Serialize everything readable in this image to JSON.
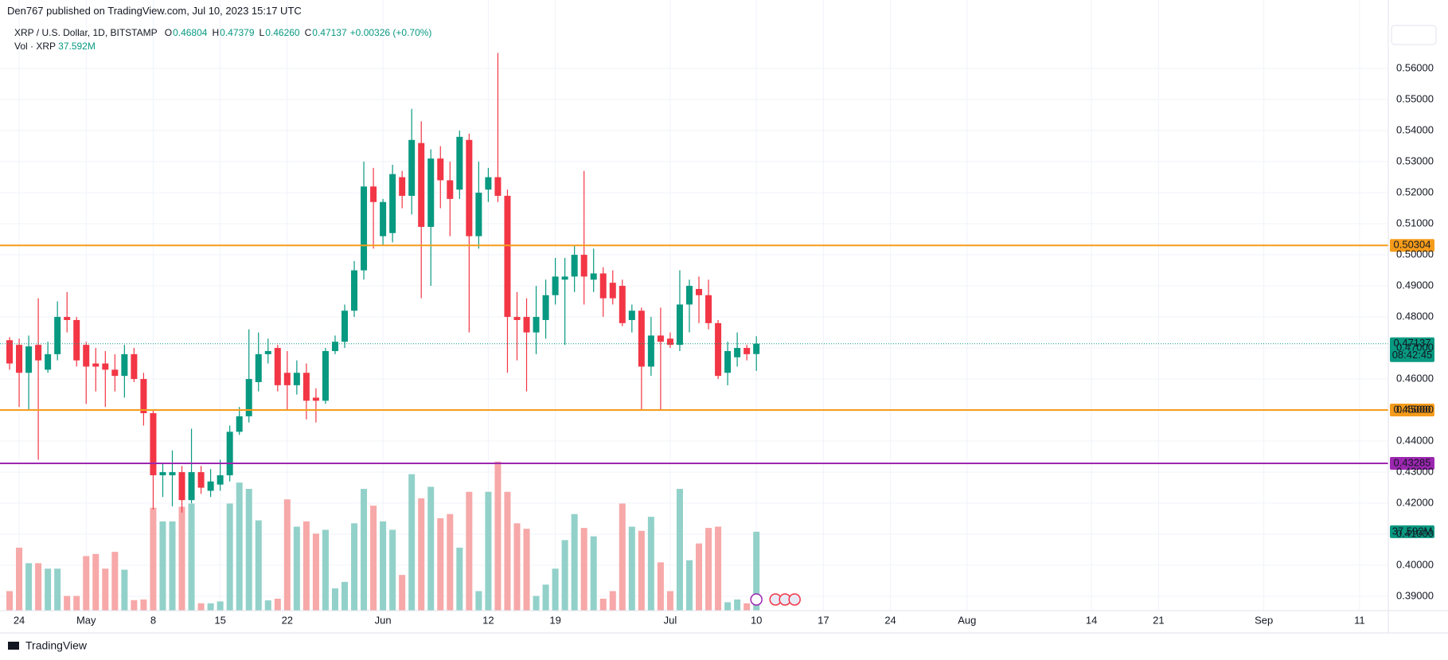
{
  "chart_data": {
    "type": "candlestick",
    "published": "Den767 published on TradingView.com, Jul 10, 2023 15:17 UTC",
    "title": "XRP / U.S. Dollar, 1D, BITSTAMP",
    "ohlc_legend": [
      {
        "label": "O",
        "value": "0.46804"
      },
      {
        "label": "H",
        "value": "0.47379"
      },
      {
        "label": "L",
        "value": "0.46260"
      },
      {
        "label": "C",
        "value": "0.47137"
      }
    ],
    "change": "+0.00326 (+0.70%)",
    "volume_legend": {
      "label": "Vol · XRP",
      "value": "37.592M"
    },
    "footer": "TradingView",
    "up_color": "#089981",
    "down_color": "#f23645",
    "volume_colors": {
      "up": "#92d1c9",
      "down": "#f7a8a8"
    },
    "x": [
      "2023-04-23",
      "2023-04-24",
      "2023-04-25",
      "2023-04-26",
      "2023-04-27",
      "2023-04-28",
      "2023-04-29",
      "2023-04-30",
      "2023-05-01",
      "2023-05-02",
      "2023-05-03",
      "2023-05-04",
      "2023-05-05",
      "2023-05-06",
      "2023-05-07",
      "2023-05-08",
      "2023-05-09",
      "2023-05-10",
      "2023-05-11",
      "2023-05-12",
      "2023-05-13",
      "2023-05-14",
      "2023-05-15",
      "2023-05-16",
      "2023-05-17",
      "2023-05-18",
      "2023-05-19",
      "2023-05-20",
      "2023-05-21",
      "2023-05-22",
      "2023-05-23",
      "2023-05-24",
      "2023-05-25",
      "2023-05-26",
      "2023-05-27",
      "2023-05-28",
      "2023-05-29",
      "2023-05-30",
      "2023-05-31",
      "2023-06-01",
      "2023-06-02",
      "2023-06-03",
      "2023-06-04",
      "2023-06-05",
      "2023-06-06",
      "2023-06-07",
      "2023-06-08",
      "2023-06-09",
      "2023-06-10",
      "2023-06-11",
      "2023-06-12",
      "2023-06-13",
      "2023-06-14",
      "2023-06-15",
      "2023-06-16",
      "2023-06-17",
      "2023-06-18",
      "2023-06-19",
      "2023-06-20",
      "2023-06-21",
      "2023-06-22",
      "2023-06-23",
      "2023-06-24",
      "2023-06-25",
      "2023-06-26",
      "2023-06-27",
      "2023-06-28",
      "2023-06-29",
      "2023-06-30",
      "2023-07-01",
      "2023-07-02",
      "2023-07-03",
      "2023-07-04",
      "2023-07-05",
      "2023-07-06",
      "2023-07-07",
      "2023-07-08",
      "2023-07-09",
      "2023-07-10"
    ],
    "open": [
      0.4725,
      0.471,
      0.462,
      0.471,
      0.463,
      0.468,
      0.48,
      0.479,
      0.471,
      0.465,
      0.465,
      0.463,
      0.461,
      0.468,
      0.46,
      0.449,
      0.429,
      0.429,
      0.43,
      0.421,
      0.43,
      0.424,
      0.426,
      0.429,
      0.443,
      0.448,
      0.459,
      0.468,
      0.47,
      0.462,
      0.458,
      0.462,
      0.454,
      0.453,
      0.469,
      0.472,
      0.482,
      0.495,
      0.522,
      0.506,
      0.507,
      0.525,
      0.519,
      0.536,
      0.509,
      0.531,
      0.524,
      0.521,
      0.537,
      0.506,
      0.521,
      0.525,
      0.519,
      0.48,
      0.48,
      0.475,
      0.479,
      0.487,
      0.492,
      0.493,
      0.5,
      0.492,
      0.494,
      0.491,
      0.49,
      0.479,
      0.482,
      0.464,
      0.474,
      0.473,
      0.471,
      0.484,
      0.489,
      0.487,
      0.478,
      0.462,
      0.467,
      0.47,
      0.46804
    ],
    "high": [
      0.4735,
      0.473,
      0.474,
      0.486,
      0.472,
      0.485,
      0.488,
      0.48,
      0.472,
      0.47,
      0.469,
      0.468,
      0.471,
      0.47,
      0.462,
      0.45,
      0.433,
      0.437,
      0.432,
      0.444,
      0.432,
      0.431,
      0.434,
      0.445,
      0.451,
      0.476,
      0.475,
      0.473,
      0.471,
      0.469,
      0.466,
      0.465,
      0.457,
      0.47,
      0.474,
      0.484,
      0.498,
      0.53,
      0.528,
      0.518,
      0.529,
      0.527,
      0.547,
      0.543,
      0.534,
      0.535,
      0.53,
      0.54,
      0.539,
      0.53,
      0.528,
      0.565,
      0.521,
      0.488,
      0.486,
      0.49,
      0.492,
      0.499,
      0.499,
      0.503,
      0.527,
      0.502,
      0.496,
      0.495,
      0.492,
      0.484,
      0.483,
      0.48,
      0.483,
      0.475,
      0.495,
      0.492,
      0.493,
      0.492,
      0.479,
      0.472,
      0.475,
      0.471,
      0.47379
    ],
    "low": [
      0.463,
      0.451,
      0.45,
      0.434,
      0.462,
      0.466,
      0.475,
      0.464,
      0.452,
      0.456,
      0.451,
      0.456,
      0.454,
      0.459,
      0.445,
      0.418,
      0.422,
      0.419,
      0.417,
      0.42,
      0.423,
      0.422,
      0.424,
      0.427,
      0.442,
      0.446,
      0.456,
      0.465,
      0.456,
      0.45,
      0.455,
      0.447,
      0.446,
      0.452,
      0.468,
      0.47,
      0.48,
      0.492,
      0.502,
      0.503,
      0.504,
      0.515,
      0.513,
      0.486,
      0.49,
      0.515,
      0.506,
      0.518,
      0.475,
      0.502,
      0.517,
      0.517,
      0.462,
      0.466,
      0.456,
      0.468,
      0.473,
      0.484,
      0.471,
      0.488,
      0.484,
      0.488,
      0.48,
      0.484,
      0.477,
      0.475,
      0.45,
      0.461,
      0.45,
      0.47,
      0.469,
      0.475,
      0.478,
      0.476,
      0.46,
      0.458,
      0.464,
      0.466,
      0.4626
    ],
    "close": [
      0.465,
      0.462,
      0.4705,
      0.466,
      0.468,
      0.48,
      0.479,
      0.466,
      0.464,
      0.464,
      0.463,
      0.461,
      0.468,
      0.46,
      0.449,
      0.429,
      0.43,
      0.43,
      0.421,
      0.43,
      0.425,
      0.427,
      0.429,
      0.443,
      0.448,
      0.46,
      0.468,
      0.469,
      0.458,
      0.458,
      0.462,
      0.453,
      0.453,
      0.469,
      0.472,
      0.482,
      0.495,
      0.522,
      0.517,
      0.517,
      0.526,
      0.519,
      0.537,
      0.509,
      0.531,
      0.524,
      0.518,
      0.538,
      0.506,
      0.52,
      0.525,
      0.519,
      0.48,
      0.479,
      0.475,
      0.48,
      0.487,
      0.493,
      0.493,
      0.5,
      0.493,
      0.494,
      0.486,
      0.486,
      0.478,
      0.482,
      0.464,
      0.474,
      0.472,
      0.471,
      0.484,
      0.49,
      0.487,
      0.478,
      0.461,
      0.469,
      0.47,
      0.468,
      0.47137
    ],
    "volume": [
      9.3,
      30,
      22.6,
      22.6,
      20,
      20,
      7,
      7,
      26,
      27,
      20,
      28,
      19.5,
      5,
      5.3,
      49,
      42.5,
      42.5,
      49.5,
      51,
      3.5,
      3.5,
      4.4,
      51,
      61,
      58,
      43,
      4.9,
      5.7,
      53,
      40,
      42.5,
      36.7,
      38.5,
      10.6,
      13.7,
      41.6,
      58,
      50,
      42.5,
      38.5,
      17,
      65,
      53.5,
      59,
      44,
      46,
      30,
      56.6,
      9.3,
      56.6,
      71,
      56.6,
      41.6,
      39,
      7,
      12.4,
      20,
      33.6,
      46,
      39.4,
      35.4,
      5.7,
      9.3,
      51,
      40,
      38,
      44.7,
      23,
      9.3,
      58,
      24,
      32,
      39.4,
      40,
      4,
      5.3,
      3.5,
      37.592
    ],
    "xlim": [
      "2023-04-22",
      "2023-09-14"
    ],
    "xticks": [
      {
        "value": "2023-04-24",
        "label": "24"
      },
      {
        "value": "2023-05-01",
        "label": "May"
      },
      {
        "value": "2023-05-08",
        "label": "8"
      },
      {
        "value": "2023-05-15",
        "label": "15"
      },
      {
        "value": "2023-05-22",
        "label": "22"
      },
      {
        "value": "2023-06-01",
        "label": "Jun"
      },
      {
        "value": "2023-06-12",
        "label": "12"
      },
      {
        "value": "2023-06-19",
        "label": "19"
      },
      {
        "value": "2023-07-01",
        "label": "Jul"
      },
      {
        "value": "2023-07-10",
        "label": "10"
      },
      {
        "value": "2023-07-17",
        "label": "17"
      },
      {
        "value": "2023-07-24",
        "label": "24"
      },
      {
        "value": "2023-08-01",
        "label": "Aug"
      },
      {
        "value": "2023-08-14",
        "label": "14"
      },
      {
        "value": "2023-08-21",
        "label": "21"
      },
      {
        "value": "2023-09-01",
        "label": "Sep"
      },
      {
        "value": "2023-09-11",
        "label": "11"
      }
    ],
    "ylim": [
      0.3854,
      0.5754
    ],
    "yticks": [
      {
        "value": 0.39,
        "label": "0.39000"
      },
      {
        "value": 0.4,
        "label": "0.40000"
      },
      {
        "value": 0.41,
        "label": "0.41000"
      },
      {
        "value": 0.42,
        "label": "0.42000"
      },
      {
        "value": 0.43,
        "label": "0.43000"
      },
      {
        "value": 0.44,
        "label": "0.44000"
      },
      {
        "value": 0.45,
        "label": "0.45000"
      },
      {
        "value": 0.46,
        "label": "0.46000"
      },
      {
        "value": 0.47,
        "label": "0.47000"
      },
      {
        "value": 0.48,
        "label": "0.48000"
      },
      {
        "value": 0.49,
        "label": "0.49000"
      },
      {
        "value": 0.5,
        "label": "0.50000"
      },
      {
        "value": 0.51,
        "label": "0.51000"
      },
      {
        "value": 0.52,
        "label": "0.52000"
      },
      {
        "value": 0.53,
        "label": "0.53000"
      },
      {
        "value": 0.54,
        "label": "0.54000"
      },
      {
        "value": 0.55,
        "label": "0.55000"
      },
      {
        "value": 0.56,
        "label": "0.56000"
      }
    ],
    "volume_ylim": [
      0,
      281
    ],
    "grid": true,
    "levels": [
      {
        "value": 0.50304,
        "label": "0.50304",
        "color": "#f59c1a"
      },
      {
        "value": 0.45,
        "label": "0.45000",
        "color": "#f59c1a"
      },
      {
        "value": 0.43285,
        "label": "0.43285",
        "color": "#9c27b0"
      }
    ],
    "price_line": {
      "value": 0.47137,
      "label": "0.47137",
      "countdown": "08:42:45",
      "color": "#089981"
    }
  }
}
